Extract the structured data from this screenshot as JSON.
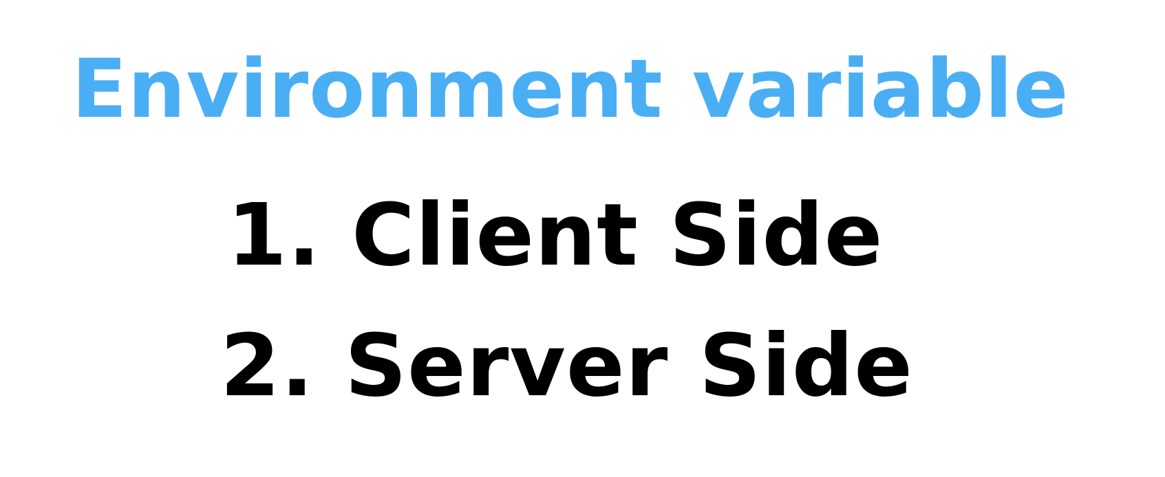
{
  "slide": {
    "title": "Environment variable",
    "title_color": "#4aaef5",
    "text_color": "#000000",
    "items": [
      {
        "label": "1. Client Side"
      },
      {
        "label": "2. Server Side"
      }
    ]
  }
}
